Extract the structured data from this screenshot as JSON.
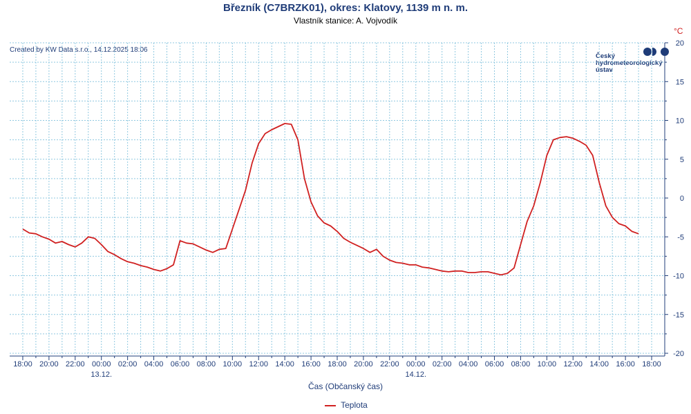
{
  "chart_data": {
    "type": "line",
    "title": "Březník (C7BRZK01), okres: Klatovy, 1139 m n. m.",
    "subtitle": "Vlastník stanice: A. Vojvodík",
    "credit": "Created by KW Data s.r.o., 14.12.2025 18:06",
    "xlabel": "Čas (Občanský čas)",
    "ylabel_unit": "°C",
    "logo_lines": [
      "Český",
      "hydrometeorologický",
      "ústav"
    ],
    "x_start": "12.12. 18:00",
    "x_tick_labels": [
      "18:00",
      "20:00",
      "22:00",
      "00:00",
      "02:00",
      "04:00",
      "06:00",
      "08:00",
      "10:00",
      "12:00",
      "14:00",
      "16:00",
      "18:00",
      "20:00",
      "22:00",
      "00:00",
      "02:00",
      "04:00",
      "06:00",
      "08:00",
      "10:00",
      "12:00",
      "14:00",
      "16:00",
      "18:00"
    ],
    "date_labels": [
      {
        "hour_offset": 6,
        "label": "13.12."
      },
      {
        "hour_offset": 30,
        "label": "14.12."
      }
    ],
    "xlim_hours": [
      -1,
      49
    ],
    "ylim": [
      -20,
      20
    ],
    "y_ticks": [
      20,
      15,
      10,
      5,
      0,
      -5,
      -10,
      -15,
      -20
    ],
    "y_tick_labels": [
      "20",
      "15",
      "10",
      "5",
      "0",
      "-5",
      "-10",
      "-15",
      "-20"
    ],
    "grid": true,
    "legend_position": "bottom-center",
    "series": [
      {
        "name": "Teplota",
        "color": "#d02020",
        "points_hours": [
          0,
          0.5,
          1,
          1.5,
          2,
          2.5,
          3,
          3.5,
          4,
          4.5,
          5,
          5.5,
          6,
          6.5,
          7,
          7.5,
          8,
          8.5,
          9,
          9.5,
          10,
          10.5,
          11,
          11.5,
          12,
          12.5,
          13,
          13.5,
          14,
          14.5,
          15,
          15.5,
          16,
          16.5,
          17,
          17.5,
          18,
          18.5,
          19,
          19.5,
          20,
          20.5,
          21,
          21.5,
          22,
          22.5,
          23,
          23.5,
          24,
          24.5,
          25,
          25.5,
          26,
          26.5,
          27,
          27.5,
          28,
          28.5,
          29,
          29.5,
          30,
          30.5,
          31,
          31.5,
          32,
          32.5,
          33,
          33.5,
          34,
          34.5,
          35,
          35.5,
          36,
          36.5,
          37,
          37.5,
          38,
          38.5,
          39,
          39.5,
          40,
          40.5,
          41,
          41.5,
          42,
          42.5,
          43,
          43.5,
          44,
          44.5,
          45,
          45.5,
          46,
          46.5,
          47,
          47.5,
          48
        ],
        "values": [
          -4.0,
          -4.5,
          -4.6,
          -5.0,
          -5.3,
          -5.8,
          -5.6,
          -6.0,
          -6.3,
          -5.8,
          -5.0,
          -5.2,
          -6.0,
          -6.9,
          -7.3,
          -7.8,
          -8.2,
          -8.4,
          -8.7,
          -8.9,
          -9.2,
          -9.4,
          -9.1,
          -8.6,
          -5.5,
          -5.8,
          -5.9,
          -6.3,
          -6.7,
          -7.0,
          -6.6,
          -6.5,
          -4.0,
          -1.5,
          1.0,
          4.5,
          7.0,
          8.3,
          8.8,
          9.2,
          9.6,
          9.5,
          7.5,
          2.5,
          -0.5,
          -2.3,
          -3.2,
          -3.6,
          -4.3,
          -5.2,
          -5.7,
          -6.1,
          -6.5,
          -7.0,
          -6.6,
          -7.5,
          -8.0,
          -8.3,
          -8.4,
          -8.6,
          -8.6,
          -8.9,
          -9.0,
          -9.2,
          -9.4,
          -9.5,
          -9.4,
          -9.4,
          -9.6,
          -9.6,
          -9.5,
          -9.5,
          -9.7,
          -9.9,
          -9.7,
          -9.0,
          -6.0,
          -3.0,
          -1.0,
          2.0,
          5.5,
          7.5,
          7.8,
          7.9,
          7.7,
          7.3,
          6.8,
          5.5,
          2.0,
          -1.0,
          -2.5,
          -3.3,
          -3.6,
          -4.3,
          -4.6
        ]
      }
    ]
  }
}
